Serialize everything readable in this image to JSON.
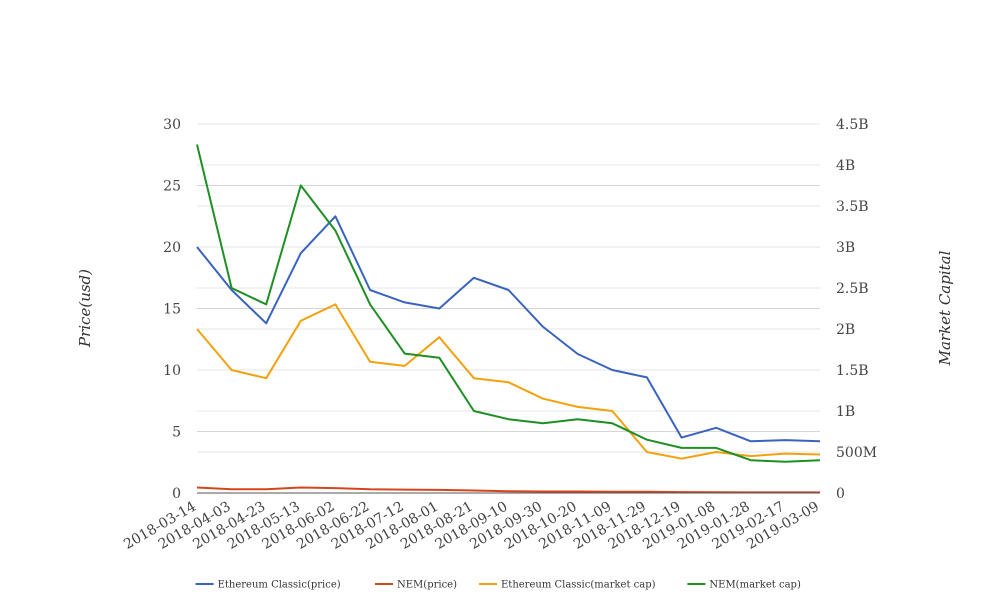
{
  "chart_data": {
    "type": "line",
    "title": "",
    "xlabel": "",
    "ylabel": "Price(usd)",
    "y2label": "Market Capital",
    "grid": true,
    "legend_position": "bottom",
    "ylim": [
      0,
      30
    ],
    "y2lim": [
      0,
      4500000000
    ],
    "yticks": [
      "0",
      "5",
      "10",
      "15",
      "20",
      "25",
      "30"
    ],
    "y2ticks": [
      "0",
      "500M",
      "1B",
      "1.5B",
      "2B",
      "2.5B",
      "3B",
      "3.5B",
      "4B",
      "4.5B"
    ],
    "categories": [
      "2018-03-14",
      "2018-04-03",
      "2018-04-23",
      "2018-05-13",
      "2018-06-02",
      "2018-06-22",
      "2018-07-12",
      "2018-08-01",
      "2018-08-21",
      "2018-09-10",
      "2018-09-30",
      "2018-10-20",
      "2018-11-09",
      "2018-11-29",
      "2018-12-19",
      "2019-01-08",
      "2019-01-28",
      "2019-02-17",
      "2019-03-09"
    ],
    "series": [
      {
        "name": "Ethereum Classic(price)",
        "axis": "left",
        "color": "#3a63c0",
        "values": [
          20.0,
          16.5,
          13.8,
          19.5,
          22.5,
          16.5,
          15.5,
          15.0,
          17.5,
          16.5,
          13.5,
          11.3,
          10.0,
          9.4,
          4.5,
          5.3,
          4.2,
          4.3,
          4.2
        ]
      },
      {
        "name": "NEM(price)",
        "axis": "left",
        "color": "#d4451e",
        "values": [
          0.45,
          0.3,
          0.3,
          0.45,
          0.4,
          0.3,
          0.28,
          0.25,
          0.2,
          0.15,
          0.12,
          0.12,
          0.1,
          0.1,
          0.07,
          0.06,
          0.05,
          0.05,
          0.05
        ]
      },
      {
        "name": "Ethereum Classic(market cap)",
        "axis": "right",
        "color": "#f2a20f",
        "values": [
          2000000000,
          1500000000,
          1400000000,
          2100000000,
          2300000000,
          1600000000,
          1550000000,
          1900000000,
          1400000000,
          1350000000,
          1150000000,
          1050000000,
          1000000000,
          500000000,
          420000000,
          500000000,
          450000000,
          480000000,
          470000000
        ]
      },
      {
        "name": "NEM(market cap)",
        "axis": "right",
        "color": "#1f8f23",
        "values": [
          4250000000,
          2500000000,
          2300000000,
          3750000000,
          3200000000,
          2300000000,
          1700000000,
          1650000000,
          1000000000,
          900000000,
          850000000,
          900000000,
          850000000,
          650000000,
          550000000,
          550000000,
          400000000,
          380000000,
          400000000
        ]
      }
    ]
  }
}
